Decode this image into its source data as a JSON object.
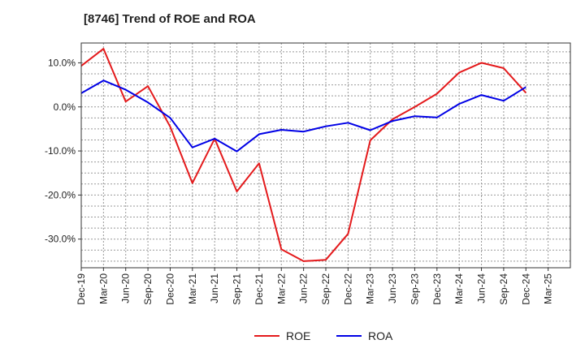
{
  "chart_data": {
    "type": "line",
    "title": "[8746]  Trend of ROE and ROA",
    "xlabel": "",
    "ylabel": "",
    "categories": [
      "Dec-19",
      "Mar-20",
      "Jun-20",
      "Sep-20",
      "Dec-20",
      "Mar-21",
      "Jun-21",
      "Sep-21",
      "Dec-21",
      "Mar-22",
      "Jun-22",
      "Sep-22",
      "Dec-22",
      "Mar-23",
      "Jun-23",
      "Sep-23",
      "Dec-23",
      "Mar-24",
      "Jun-24",
      "Sep-24",
      "Dec-24",
      "Mar-25"
    ],
    "ylim": [
      -36.5,
      14.5
    ],
    "yticks": [
      10,
      0,
      -10,
      -20,
      -30
    ],
    "ytick_labels": [
      "10.0%",
      "0.0%",
      "-10.0%",
      "-20.0%",
      "-30.0%"
    ],
    "grid": true,
    "legend_position": "bottom-center",
    "series": [
      {
        "name": "ROE",
        "color": "#e41a1c",
        "values": [
          9.3,
          13.2,
          1.2,
          4.7,
          -4.5,
          -17.3,
          -7.2,
          -19.2,
          -12.8,
          -32.3,
          -35.0,
          -34.7,
          -28.8,
          -7.6,
          -2.8,
          0.0,
          3.0,
          7.8,
          10.0,
          8.8,
          3.2,
          null
        ]
      },
      {
        "name": "ROA",
        "color": "#0000e6",
        "values": [
          3.1,
          6.0,
          3.9,
          1.0,
          -2.5,
          -9.2,
          -7.2,
          -10.1,
          -6.2,
          -5.2,
          -5.6,
          -4.4,
          -3.6,
          -5.3,
          -3.2,
          -2.1,
          -2.4,
          0.7,
          2.7,
          1.4,
          4.5,
          null
        ]
      }
    ]
  }
}
